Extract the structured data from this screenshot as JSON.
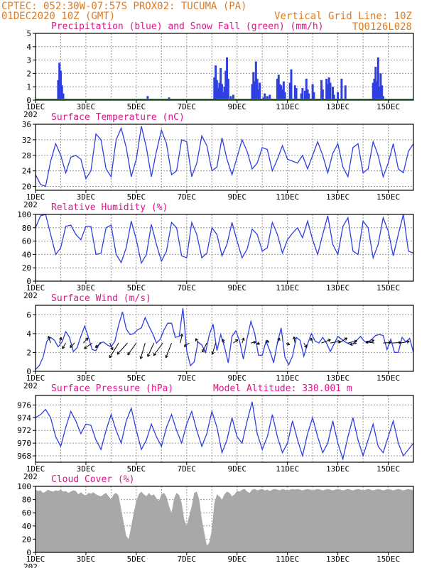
{
  "header": {
    "line1_left": "CPTEC:   052:30W-07:57S   PROX02: TUCUMA (PA)",
    "line2_left": "01DEC2020 10Z (GMT)",
    "line2_right": "Vertical Grid Line: 10Z",
    "line3_right": "TQ0126L028"
  },
  "x_axis_ticks": [
    "1DEC",
    "3DEC",
    "5DEC",
    "7DEC",
    "9DEC",
    "11DEC",
    "13DEC",
    "15DEC"
  ],
  "x_axis_year_stub": "202",
  "colors": {
    "header": "#e07a1f",
    "panel_title": "#e0148c",
    "precip": "#2f3fe0",
    "snow": "#1aa51a",
    "line": "#2f3fe0",
    "cloud": "#a8a8a8",
    "grid": "#9a9a9a"
  },
  "chart_data": [
    {
      "id": "precip",
      "type": "bar",
      "title": "Precipitation (blue) and Snow Fall (green) (mm/h)",
      "ylim": [
        0,
        5
      ],
      "yticks": [
        0,
        1,
        2,
        3,
        4,
        5
      ],
      "series": [
        {
          "name": "Precipitation",
          "x": [
            1.9,
            1.95,
            2.0,
            2.05,
            2.1,
            5.45,
            6.3,
            8.1,
            8.15,
            8.2,
            8.25,
            8.3,
            8.35,
            8.4,
            8.45,
            8.5,
            8.55,
            8.6,
            8.65,
            8.75,
            8.85,
            9.6,
            9.65,
            9.7,
            9.75,
            9.8,
            9.85,
            9.9,
            10.05,
            10.1,
            10.2,
            10.3,
            10.6,
            10.65,
            10.7,
            10.75,
            10.8,
            10.85,
            10.9,
            11.1,
            11.15,
            11.3,
            11.35,
            11.55,
            11.6,
            11.7,
            11.75,
            11.8,
            11.85,
            12.0,
            12.05,
            12.35,
            12.4,
            12.55,
            12.6,
            12.65,
            12.7,
            12.8,
            12.85,
            13.0,
            13.15,
            13.3,
            14.4,
            14.45,
            14.5,
            14.55,
            14.6,
            14.65,
            14.7,
            14.75,
            14.8
          ],
          "values": [
            1.5,
            2.8,
            2.2,
            1.1,
            0.5,
            0.3,
            0.2,
            1.7,
            2.6,
            1.5,
            0.9,
            1.3,
            2.4,
            1.2,
            0.6,
            1.0,
            2.2,
            3.2,
            1.6,
            0.3,
            0.4,
            1.2,
            2.1,
            1.4,
            2.9,
            1.6,
            0.8,
            1.3,
            0.2,
            0.5,
            0.3,
            0.4,
            1.6,
            1.9,
            1.2,
            1.1,
            0.8,
            1.4,
            0.6,
            1.3,
            2.3,
            1.1,
            0.9,
            0.5,
            0.9,
            0.7,
            1.6,
            0.8,
            0.5,
            1.2,
            0.6,
            1.5,
            0.8,
            1.6,
            1.2,
            1.7,
            1.3,
            1.0,
            0.4,
            0.6,
            1.6,
            1.1,
            1.3,
            1.6,
            2.5,
            1.4,
            3.2,
            1.0,
            2.0,
            1.1,
            0.3
          ]
        },
        {
          "name": "Snow Fall",
          "x": [
            1.0,
            16.0
          ],
          "values": [
            0,
            0
          ]
        }
      ]
    },
    {
      "id": "temperature",
      "type": "line",
      "title": "Surface Temperature (nC)",
      "ylim": [
        19,
        36
      ],
      "yticks": [
        20,
        24,
        28,
        32,
        36
      ],
      "x": [
        1.0,
        1.2,
        1.4,
        1.6,
        1.8,
        2.0,
        2.2,
        2.4,
        2.6,
        2.8,
        3.0,
        3.2,
        3.4,
        3.6,
        3.8,
        4.0,
        4.2,
        4.4,
        4.6,
        4.8,
        5.0,
        5.2,
        5.4,
        5.6,
        5.8,
        6.0,
        6.2,
        6.4,
        6.6,
        6.8,
        7.0,
        7.2,
        7.4,
        7.6,
        7.8,
        8.0,
        8.2,
        8.4,
        8.6,
        8.8,
        9.0,
        9.2,
        9.4,
        9.6,
        9.8,
        10.0,
        10.2,
        10.4,
        10.6,
        10.8,
        11.0,
        11.2,
        11.4,
        11.6,
        11.8,
        12.0,
        12.2,
        12.4,
        12.6,
        12.8,
        13.0,
        13.2,
        13.4,
        13.6,
        13.8,
        14.0,
        14.2,
        14.4,
        14.6,
        14.8,
        15.0,
        15.2,
        15.4,
        15.6,
        15.8,
        16.0
      ],
      "values": [
        23.0,
        20.5,
        20.0,
        26.5,
        31.0,
        28.0,
        23.5,
        27.5,
        28.0,
        27.0,
        22.0,
        24.0,
        33.5,
        32.0,
        24.5,
        22.5,
        32.0,
        35.0,
        30.0,
        22.5,
        27.0,
        35.5,
        30.0,
        22.5,
        29.0,
        34.5,
        31.0,
        23.0,
        24.0,
        32.0,
        31.5,
        22.5,
        26.0,
        33.0,
        30.5,
        24.0,
        25.0,
        32.5,
        27.0,
        23.0,
        27.5,
        32.0,
        29.0,
        24.5,
        26.0,
        30.0,
        29.5,
        24.0,
        27.0,
        30.5,
        27.0,
        26.5,
        26.0,
        28.0,
        24.5,
        28.0,
        31.5,
        28.0,
        23.5,
        28.5,
        31.0,
        25.0,
        22.5,
        30.0,
        31.0,
        23.5,
        24.5,
        31.5,
        28.0,
        22.5,
        26.0,
        31.0,
        24.5,
        23.5,
        29.0,
        31.0
      ]
    },
    {
      "id": "humidity",
      "type": "line",
      "title": "Relative Humidity (%)",
      "ylim": [
        0,
        100
      ],
      "yticks": [
        0,
        20,
        40,
        60,
        80,
        100
      ],
      "x": [
        1.0,
        1.2,
        1.4,
        1.6,
        1.8,
        2.0,
        2.2,
        2.4,
        2.6,
        2.8,
        3.0,
        3.2,
        3.4,
        3.6,
        3.8,
        4.0,
        4.2,
        4.4,
        4.6,
        4.8,
        5.0,
        5.2,
        5.4,
        5.6,
        5.8,
        6.0,
        6.2,
        6.4,
        6.6,
        6.8,
        7.0,
        7.2,
        7.4,
        7.6,
        7.8,
        8.0,
        8.2,
        8.4,
        8.6,
        8.8,
        9.0,
        9.2,
        9.4,
        9.6,
        9.8,
        10.0,
        10.2,
        10.4,
        10.6,
        10.8,
        11.0,
        11.2,
        11.4,
        11.6,
        11.8,
        12.0,
        12.2,
        12.4,
        12.6,
        12.8,
        13.0,
        13.2,
        13.4,
        13.6,
        13.8,
        14.0,
        14.2,
        14.4,
        14.6,
        14.8,
        15.0,
        15.2,
        15.4,
        15.6,
        15.8,
        16.0
      ],
      "values": [
        80.0,
        98.0,
        100.0,
        70.0,
        40.0,
        50.0,
        82.0,
        84.0,
        70.0,
        62.0,
        82.0,
        82.0,
        40.0,
        42.0,
        80.0,
        84.0,
        40.0,
        28.0,
        50.0,
        90.0,
        62.0,
        27.0,
        40.0,
        85.0,
        55.0,
        30.0,
        45.0,
        88.0,
        80.0,
        38.0,
        35.0,
        88.0,
        70.0,
        35.0,
        42.0,
        80.0,
        70.0,
        38.0,
        55.0,
        88.0,
        60.0,
        35.0,
        48.0,
        78.0,
        70.0,
        45.0,
        50.0,
        88.0,
        70.0,
        42.0,
        62.0,
        72.0,
        80.0,
        65.0,
        90.0,
        62.0,
        40.0,
        70.0,
        98.0,
        55.0,
        40.0,
        82.0,
        95.0,
        45.0,
        40.0,
        90.0,
        80.0,
        35.0,
        55.0,
        95.0,
        75.0,
        38.0,
        70.0,
        100.0,
        45.0,
        42.0
      ]
    },
    {
      "id": "wind",
      "type": "line",
      "title": "Surface Wind (m/s)",
      "ylim": [
        0,
        7
      ],
      "yticks": [
        0,
        2,
        4,
        6
      ],
      "x": [
        1.0,
        1.15,
        1.3,
        1.45,
        1.6,
        1.75,
        1.9,
        2.05,
        2.2,
        2.35,
        2.5,
        2.65,
        2.8,
        2.95,
        3.1,
        3.25,
        3.4,
        3.55,
        3.7,
        3.85,
        4.0,
        4.15,
        4.3,
        4.45,
        4.6,
        4.75,
        4.9,
        5.05,
        5.2,
        5.35,
        5.5,
        5.65,
        5.8,
        5.95,
        6.1,
        6.25,
        6.4,
        6.55,
        6.7,
        6.85,
        7.0,
        7.15,
        7.3,
        7.45,
        7.6,
        7.75,
        7.9,
        8.05,
        8.2,
        8.35,
        8.5,
        8.65,
        8.8,
        8.95,
        9.1,
        9.25,
        9.4,
        9.55,
        9.7,
        9.85,
        10.0,
        10.15,
        10.3,
        10.45,
        10.6,
        10.75,
        10.9,
        11.05,
        11.2,
        11.35,
        11.5,
        11.65,
        11.8,
        11.95,
        12.1,
        12.25,
        12.4,
        12.55,
        12.7,
        12.85,
        13.0,
        13.15,
        13.3,
        13.45,
        13.6,
        13.75,
        13.9,
        14.05,
        14.2,
        14.35,
        14.5,
        14.65,
        14.8,
        14.95,
        15.1,
        15.25,
        15.4,
        15.55,
        15.7,
        15.85,
        16.0
      ],
      "values": [
        0.2,
        0.6,
        1.5,
        3.2,
        3.6,
        3.3,
        2.6,
        3.1,
        4.2,
        3.6,
        2.1,
        2.5,
        3.7,
        4.8,
        3.6,
        2.3,
        2.2,
        3.0,
        3.1,
        2.8,
        2.6,
        3.2,
        4.9,
        6.3,
        4.5,
        3.9,
        4.0,
        4.4,
        4.6,
        5.7,
        4.8,
        4.0,
        3.0,
        3.4,
        4.4,
        5.1,
        5.1,
        3.6,
        3.7,
        6.7,
        2.2,
        0.6,
        1.0,
        3.1,
        2.8,
        2.0,
        3.9,
        5.0,
        2.2,
        3.9,
        2.6,
        0.9,
        3.7,
        4.3,
        3.2,
        1.3,
        3.5,
        5.3,
        4.0,
        1.7,
        1.7,
        3.2,
        2.2,
        0.9,
        3.0,
        4.6,
        1.5,
        0.7,
        1.6,
        3.6,
        3.3,
        1.6,
        2.9,
        4.0,
        3.2,
        3.0,
        3.6,
        3.0,
        2.1,
        2.9,
        3.7,
        3.4,
        3.1,
        2.9,
        2.9,
        3.3,
        3.7,
        3.2,
        3.1,
        3.4,
        3.8,
        3.9,
        3.8,
        2.3,
        3.4,
        2.0,
        2.0,
        3.6,
        3.1,
        3.5,
        2.0
      ]
    },
    {
      "id": "pressure",
      "type": "line",
      "title": "Surface Pressure (hPa)",
      "annotation": "Model Altitude: 330.001 m",
      "ylim": [
        967,
        977.5
      ],
      "yticks": [
        968,
        970,
        972,
        974,
        976
      ],
      "x": [
        1.0,
        1.2,
        1.4,
        1.6,
        1.8,
        2.0,
        2.2,
        2.4,
        2.6,
        2.8,
        3.0,
        3.2,
        3.4,
        3.6,
        3.8,
        4.0,
        4.2,
        4.4,
        4.6,
        4.8,
        5.0,
        5.2,
        5.4,
        5.6,
        5.8,
        6.0,
        6.2,
        6.4,
        6.6,
        6.8,
        7.0,
        7.2,
        7.4,
        7.6,
        7.8,
        8.0,
        8.2,
        8.4,
        8.6,
        8.8,
        9.0,
        9.2,
        9.4,
        9.6,
        9.8,
        10.0,
        10.2,
        10.4,
        10.6,
        10.8,
        11.0,
        11.2,
        11.4,
        11.6,
        11.8,
        12.0,
        12.2,
        12.4,
        12.6,
        12.8,
        13.0,
        13.2,
        13.4,
        13.6,
        13.8,
        14.0,
        14.2,
        14.4,
        14.6,
        14.8,
        15.0,
        15.2,
        15.4,
        15.6,
        15.8,
        16.0
      ],
      "values": [
        974.0,
        974.5,
        975.3,
        974.0,
        971.0,
        969.5,
        972.5,
        975.0,
        973.5,
        971.5,
        973.0,
        972.8,
        970.5,
        969.0,
        972.0,
        974.5,
        972.0,
        970.0,
        973.5,
        975.5,
        972.0,
        969.0,
        970.5,
        973.0,
        971.0,
        969.5,
        972.5,
        974.5,
        972.0,
        970.0,
        973.0,
        975.0,
        972.0,
        969.5,
        971.5,
        975.0,
        972.5,
        968.5,
        970.5,
        974.0,
        971.0,
        970.0,
        973.5,
        976.5,
        971.5,
        969.0,
        971.0,
        974.5,
        971.0,
        968.5,
        970.0,
        973.5,
        970.5,
        968.0,
        971.5,
        974.0,
        971.0,
        968.5,
        970.0,
        973.5,
        970.0,
        967.5,
        971.0,
        974.0,
        970.5,
        968.0,
        970.5,
        973.0,
        969.5,
        968.5,
        971.0,
        973.5,
        970.0,
        968.0,
        969.0,
        970.0
      ]
    },
    {
      "id": "cloud",
      "type": "area",
      "title": "Cloud Cover (%)",
      "ylim": [
        0,
        100
      ],
      "yticks": [
        0,
        20,
        40,
        60,
        80,
        100
      ],
      "x": [
        1.0,
        1.1,
        1.2,
        1.3,
        1.4,
        1.5,
        1.6,
        1.7,
        1.8,
        1.9,
        2.0,
        2.1,
        2.2,
        2.3,
        2.4,
        2.5,
        2.6,
        2.7,
        2.8,
        2.9,
        3.0,
        3.1,
        3.2,
        3.3,
        3.4,
        3.5,
        3.6,
        3.7,
        3.8,
        3.9,
        4.0,
        4.1,
        4.2,
        4.3,
        4.4,
        4.5,
        4.6,
        4.7,
        4.8,
        4.9,
        5.0,
        5.1,
        5.2,
        5.3,
        5.4,
        5.5,
        5.6,
        5.7,
        5.8,
        5.9,
        6.0,
        6.1,
        6.2,
        6.3,
        6.4,
        6.5,
        6.6,
        6.7,
        6.8,
        6.9,
        7.0,
        7.1,
        7.2,
        7.3,
        7.4,
        7.5,
        7.6,
        7.7,
        7.8,
        7.9,
        8.0,
        8.1,
        8.2,
        8.3,
        8.4,
        8.5,
        8.6,
        8.7,
        8.8,
        8.9,
        9.0,
        9.1,
        9.2,
        9.3,
        9.4,
        9.5,
        9.6,
        9.7,
        9.8,
        9.9,
        10.0,
        10.1,
        10.2,
        10.3,
        10.4,
        10.5,
        10.6,
        10.7,
        10.8,
        10.9,
        11.0,
        11.1,
        11.2,
        11.3,
        11.4,
        11.5,
        11.6,
        11.7,
        11.8,
        11.9,
        12.0,
        12.1,
        12.2,
        12.3,
        12.4,
        12.5,
        12.6,
        12.7,
        12.8,
        12.9,
        13.0,
        13.1,
        13.2,
        13.3,
        13.4,
        13.5,
        13.6,
        13.7,
        13.8,
        13.9,
        14.0,
        14.1,
        14.2,
        14.3,
        14.4,
        14.5,
        14.6,
        14.7,
        14.8,
        14.9,
        15.0,
        15.1,
        15.2,
        15.3,
        15.4,
        15.5,
        15.6,
        15.7,
        15.8,
        15.9,
        16.0
      ],
      "values": [
        95.0,
        93.0,
        94.0,
        90.0,
        92.0,
        95.0,
        93.0,
        92.0,
        94.0,
        93.0,
        95.0,
        92.0,
        93.0,
        90.0,
        92.0,
        94.0,
        93.0,
        88.0,
        91.0,
        88.0,
        86.0,
        90.0,
        89.0,
        91.0,
        88.0,
        86.0,
        85.0,
        88.0,
        90.0,
        85.0,
        80.0,
        88.0,
        90.0,
        86.0,
        65.0,
        45.0,
        25.0,
        20.0,
        40.0,
        60.0,
        78.0,
        88.0,
        92.0,
        88.0,
        85.0,
        90.0,
        86.0,
        88.0,
        82.0,
        78.0,
        88.0,
        90.0,
        84.0,
        70.0,
        60.0,
        82.0,
        90.0,
        87.0,
        75.0,
        50.0,
        40.0,
        55.0,
        70.0,
        90.0,
        92.0,
        80.0,
        50.0,
        30.0,
        10.0,
        15.0,
        35.0,
        75.0,
        88.0,
        85.0,
        80.0,
        88.0,
        92.0,
        90.0,
        85.0,
        88.0,
        93.0,
        92.0,
        95.0,
        96.0,
        92.0,
        90.0,
        95.0,
        96.0,
        94.0,
        95.0,
        96.0,
        94.0,
        95.0,
        93.0,
        95.0,
        96.0,
        95.0,
        94.0,
        96.0,
        95.0,
        94.0,
        95.0,
        96.0,
        95.0,
        96.0,
        95.0,
        94.0,
        95.0,
        96.0,
        95.0,
        94.0,
        95.0,
        96.0,
        95.0,
        94.0,
        95.0,
        96.0,
        95.0,
        94.0,
        95.0,
        96.0,
        95.0,
        94.0,
        95.0,
        96.0,
        95.0,
        94.0,
        95.0,
        96.0,
        95.0,
        94.0,
        95.0,
        96.0,
        95.0,
        94.0,
        95.0,
        96.0,
        95.0,
        94.0,
        95.0,
        96.0,
        95.0,
        94.0,
        95.0,
        96.0,
        95.0,
        94.0,
        95.0,
        96.0,
        95.0,
        94.0
      ]
    }
  ],
  "wind_vectors": {
    "x": [
      1.6,
      1.95,
      2.2,
      2.55,
      2.9,
      3.25,
      3.6,
      3.95,
      4.3,
      4.65,
      5.0,
      5.35,
      5.7,
      6.05,
      6.4,
      6.75,
      7.1,
      7.45,
      7.8,
      8.15,
      8.5,
      8.85,
      9.2,
      9.55,
      9.9,
      10.25,
      10.6,
      10.95,
      11.3,
      11.65,
      12.0,
      12.35,
      12.7,
      13.05,
      13.4,
      13.75,
      14.1,
      14.45,
      14.8,
      15.15,
      15.5
    ],
    "u": [
      -0.4,
      0.3,
      -0.6,
      -0.8,
      0.8,
      -1.4,
      -1.0,
      0.5,
      -1.6,
      -1.8,
      -1.5,
      -0.8,
      -1.1,
      -1.6,
      -1.0,
      0.3,
      -0.9,
      -0.4,
      -0.8,
      -0.6,
      -0.4,
      0.8,
      0.3,
      0.9,
      -0.5,
      -0.3,
      0.4,
      0.6,
      -0.2,
      0.5,
      -0.3,
      1.6,
      1.8,
      1.4,
      1.6,
      -1.2,
      1.5,
      -1.5,
      1.4,
      1.6,
      1.5
    ],
    "v": [
      1.2,
      1.0,
      -1.0,
      -0.8,
      0.9,
      -1.0,
      -0.8,
      -1.2,
      -2.6,
      -2.0,
      -2.1,
      -2.8,
      -2.4,
      -2.2,
      -2.6,
      1.6,
      -0.6,
      0.8,
      -1.6,
      -2.0,
      0.7,
      0.6,
      0.9,
      0.2,
      -0.2,
      0.5,
      0.9,
      -0.3,
      1.1,
      -0.8,
      0.9,
      0.6,
      0.3,
      0.9,
      0.4,
      -0.3,
      0.5,
      0.2,
      0.1,
      0.1,
      0.3
    ]
  }
}
